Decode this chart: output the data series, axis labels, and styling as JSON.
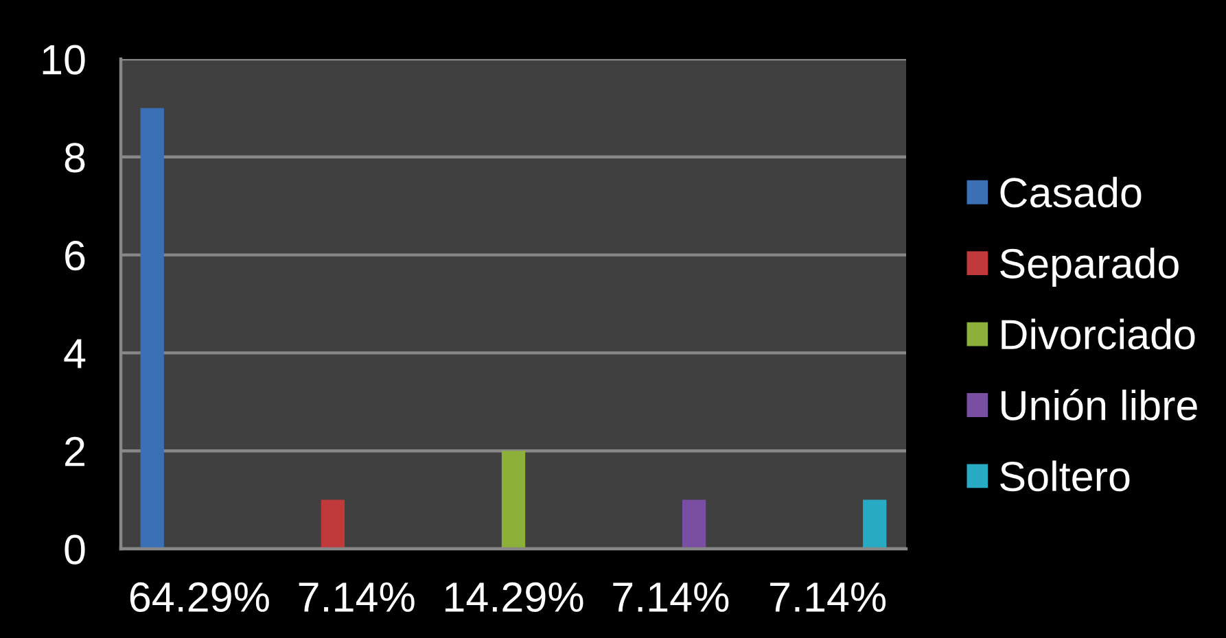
{
  "chart_data": {
    "type": "bar",
    "categories": [
      "64.29%",
      "7.14%",
      "14.29%",
      "7.14%",
      "7.14%"
    ],
    "series": [
      {
        "name": "Casado",
        "color": "#3b6fb6",
        "values": [
          9,
          null,
          null,
          null,
          null
        ]
      },
      {
        "name": "Separado",
        "color": "#c0393b",
        "values": [
          null,
          1,
          null,
          null,
          null
        ]
      },
      {
        "name": "Divorciado",
        "color": "#8db03a",
        "values": [
          null,
          null,
          2,
          null,
          null
        ]
      },
      {
        "name": "Unión libre",
        "color": "#7a4fa3",
        "values": [
          null,
          null,
          null,
          1,
          null
        ]
      },
      {
        "name": "Soltero",
        "color": "#28a9c4",
        "values": [
          null,
          null,
          null,
          null,
          1
        ]
      }
    ],
    "ylim": [
      0,
      10
    ],
    "yticks": [
      0,
      2,
      4,
      6,
      8,
      10
    ],
    "grid": "y",
    "legend": "right"
  }
}
